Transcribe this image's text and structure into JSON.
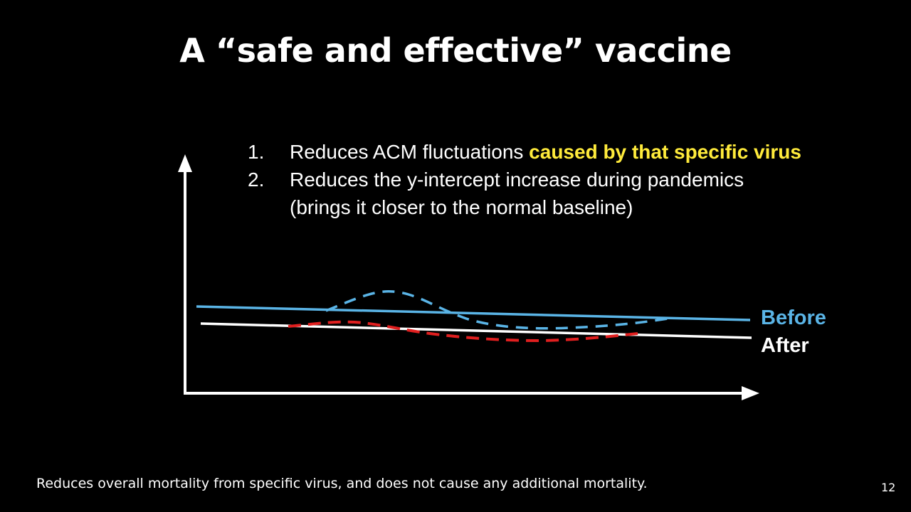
{
  "slide": {
    "title": "A “safe and effective” vaccine",
    "points": [
      {
        "number": "1.",
        "text": "Reduces ACM fluctuations ",
        "highlight": "caused by that specific virus"
      },
      {
        "number": "2.",
        "text": "Reduces the y-intercept increase during pandemics",
        "continuation": "(brings it closer to the normal baseline)"
      }
    ],
    "caption": "Reduces overall mortality from specific virus, and does not cause any additional mortality.",
    "page_number": "12"
  },
  "diagram": {
    "labels": {
      "before": "Before",
      "after": "After"
    },
    "colors": {
      "before": "#5ab4e6",
      "after": "#ffffff",
      "after_fluctuation": "#e01f1f",
      "highlight": "#ffeb3b",
      "axes": "#ffffff"
    }
  }
}
